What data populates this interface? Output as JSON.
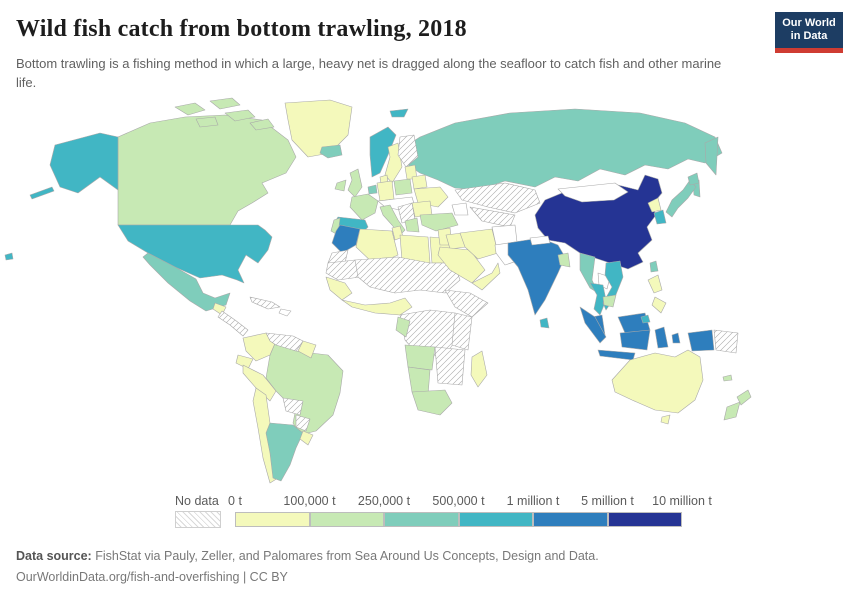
{
  "header": {
    "title": "Wild fish catch from bottom trawling, 2018",
    "subtitle": "Bottom trawling is a fishing method in which a large, heavy net is dragged along the seafloor to catch fish and other marine life.",
    "logo_line1": "Our World",
    "logo_line2": "in Data",
    "logo_bg": "#1d3d63",
    "logo_accent": "#cf3c32"
  },
  "legend": {
    "no_data_label": "No data",
    "ticks": [
      "0 t",
      "100,000 t",
      "250,000 t",
      "500,000 t",
      "1 million t",
      "5 million t",
      "10 million t"
    ],
    "bin_keys": [
      "b0",
      "b1",
      "b2",
      "b3",
      "b4",
      "b5"
    ]
  },
  "footer": {
    "source_label": "Data source:",
    "source_text": " FishStat via Pauly, Zeller, and Palomares from Sea Around Us Concepts, Design and Data.",
    "url": "OurWorldinData.org/fish-and-overfishing",
    "license": " | CC BY"
  },
  "chart_data": {
    "type": "heatmap",
    "subtype": "choropleth-world-map",
    "title": "Wild fish catch from bottom trawling, 2018",
    "unit": "tonnes",
    "legend_ticks": [
      "0 t",
      "100,000 t",
      "250,000 t",
      "500,000 t",
      "1 million t",
      "5 million t",
      "10 million t"
    ],
    "bins": [
      {
        "key": "zero",
        "label": "0 t",
        "color": "#ffffff"
      },
      {
        "key": "b0",
        "label": "0–100,000 t",
        "color": "#f4f9bb"
      },
      {
        "key": "b1",
        "label": "100,000–250,000 t",
        "color": "#c7e9b4"
      },
      {
        "key": "b2",
        "label": "250,000–500,000 t",
        "color": "#7fcdbb"
      },
      {
        "key": "b3",
        "label": "500,000 t–1 million t",
        "color": "#41b6c4"
      },
      {
        "key": "b4",
        "label": "1–5 million t",
        "color": "#2e7ebd"
      },
      {
        "key": "b5",
        "label": "5–10 million t",
        "color": "#253494"
      },
      {
        "key": "nodata",
        "label": "No data",
        "color": "hatched"
      }
    ],
    "countries": {
      "alaska": "b3",
      "aleutians": "b3",
      "hawaii": "b3",
      "canada": "b1",
      "arctic-island-1": "b1",
      "arctic-island-2": "b1",
      "arctic-island-3": "b1",
      "arctic-island-4": "b1",
      "arctic-island-5": "b1",
      "greenland": "b0",
      "united-states": "b3",
      "mexico": "b2",
      "guatemala": "b0",
      "central-america": "nodata",
      "cuba": "nodata",
      "hispaniola": "zero",
      "colombia": "b0",
      "venezuela": "nodata",
      "guyana": "b0",
      "ecuador": "b0",
      "peru": "b0",
      "brazil": "b1",
      "bolivia": "nodata",
      "paraguay": "nodata",
      "chile": "b0",
      "argentina": "b2",
      "uruguay": "b0",
      "iceland": "b2",
      "svalbard": "b3",
      "norway": "b3",
      "sweden": "b0",
      "finland": "nodata",
      "ireland": "b1",
      "united-kingdom": "b1",
      "denmark": "b0",
      "netherlands": "b2",
      "germany": "b0",
      "france": "b1",
      "spain": "b3",
      "portugal": "b1",
      "italy": "b1",
      "alpine-europe": "zero",
      "poland": "b1",
      "baltics": "b0",
      "belarus": "b0",
      "ukraine": "b0",
      "romania-bulgaria": "b0",
      "balkans": "nodata",
      "greece": "b1",
      "turkey": "b1",
      "russia": "b2",
      "kamchatka": "b2",
      "sakhalin": "b2",
      "morocco": "b4",
      "western-sahara": "nodata",
      "algeria": "b0",
      "tunisia": "b0",
      "libya": "b0",
      "egypt": "b0",
      "mauritania": "nodata",
      "sahel-belt": "nodata",
      "senegal-guinea": "b0",
      "west-africa-coast": "b0",
      "horn-of-africa": "nodata",
      "central-africa": "nodata",
      "gabon-congo": "b1",
      "east-africa": "nodata",
      "angola": "b1",
      "zambia-mozambique": "nodata",
      "namibia": "b1",
      "south-africa": "b1",
      "madagascar": "b0",
      "levant": "b0",
      "iraq": "b0",
      "saudi-arabia": "b0",
      "yemen-oman": "b0",
      "iran": "b0",
      "caucasus": "zero",
      "kazakhstan": "nodata",
      "uzbek-turkmen": "nodata",
      "afghanistan": "zero",
      "pakistan": "zero",
      "india": "b4",
      "sri-lanka": "b3",
      "nepal": "zero",
      "bangladesh": "b1",
      "myanmar": "b2",
      "china": "b5",
      "mongolia": "zero",
      "north-korea": "b0",
      "south-korea": "b3",
      "japan": "b2",
      "hokkaido": "b2",
      "taiwan": "b2",
      "laos": "zero",
      "thailand": "b3",
      "vietnam": "b3",
      "cambodia": "b1",
      "malay-peninsula": "b4",
      "sumatra": "b4",
      "java": "b4",
      "malaysia-borneo": "b4",
      "brunei": "b3",
      "kalimantan": "b4",
      "sulawesi": "b4",
      "moluccas": "b4",
      "west-papua": "b4",
      "papua-new-guinea": "nodata",
      "philippines-north": "b0",
      "philippines-south": "b0",
      "australia": "b0",
      "tasmania": "b0",
      "new-zealand-north": "b1",
      "new-zealand-south": "b1",
      "new-caledonia": "b1"
    }
  }
}
